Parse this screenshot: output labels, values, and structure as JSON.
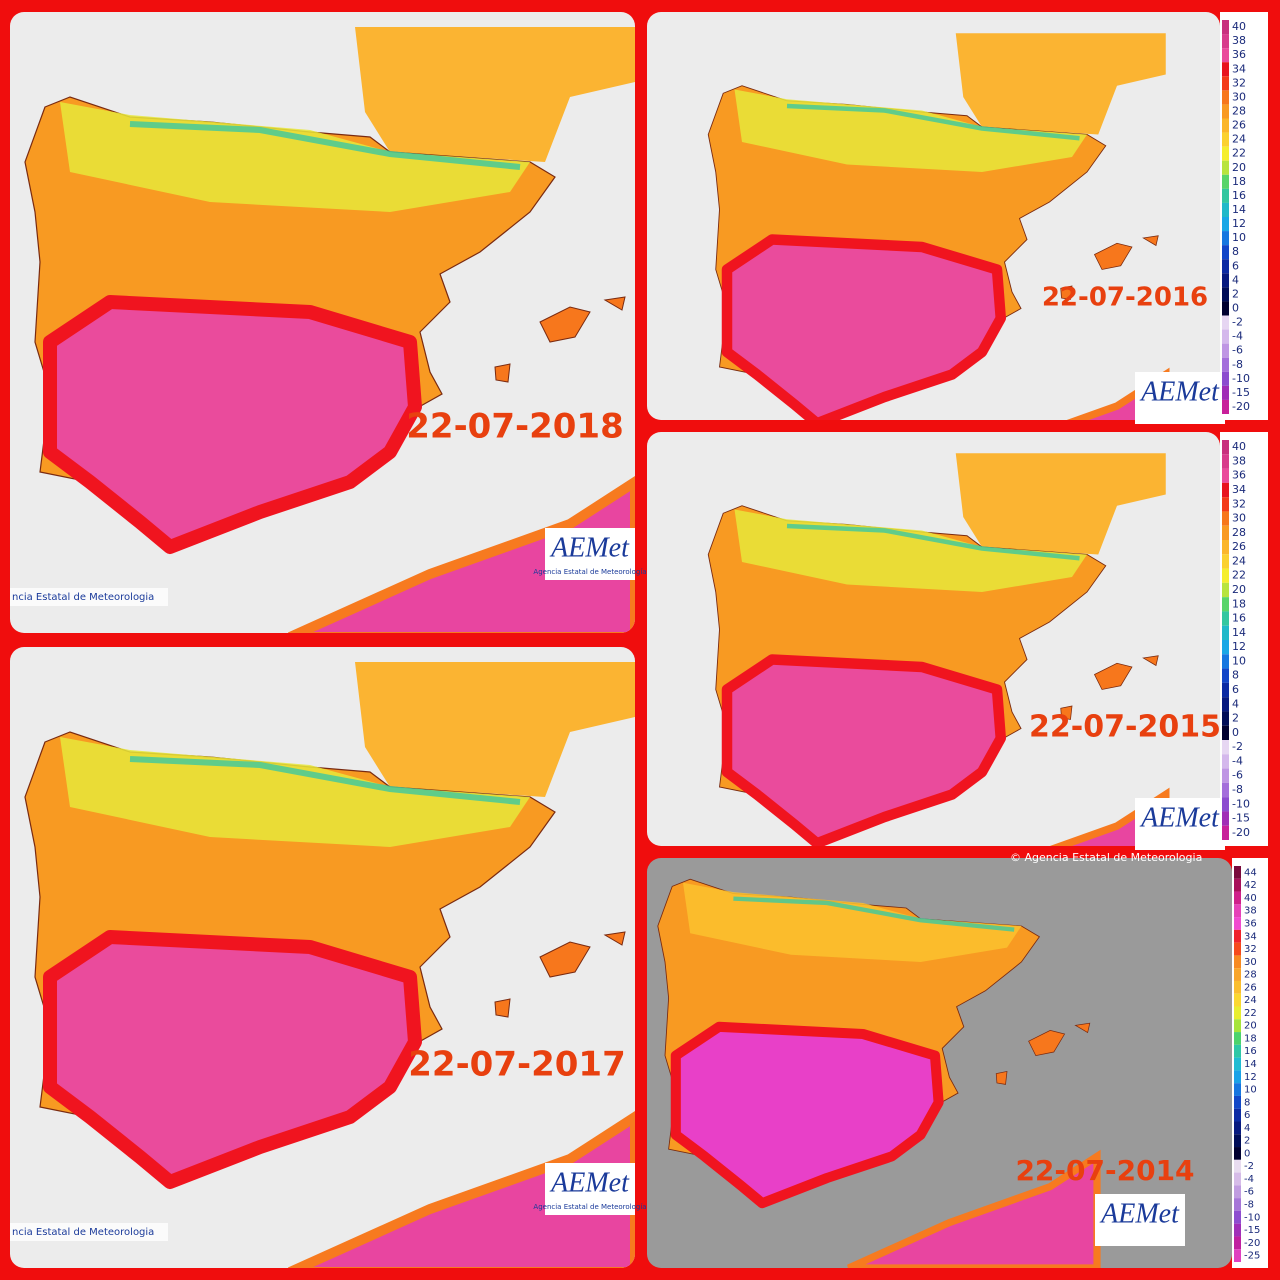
{
  "panels": [
    {
      "date": "22-07-2018",
      "credit": "ncia Estatal de Meteorologia",
      "logo": "AEMet",
      "logo_sub": "Agencia Estatal de Meteorología"
    },
    {
      "date": "22-07-2016",
      "logo": "AEMet"
    },
    {
      "date": "22-07-2015",
      "logo": "AEMet"
    },
    {
      "date": "22-07-2017",
      "credit": "ncia Estatal de Meteorologia",
      "logo": "AEMet",
      "logo_sub": "Agencia Estatal de Meteorología"
    },
    {
      "date": "22-07-2014",
      "header": "© Agencia Estatal de Meteorologia",
      "logo": "AEMet"
    }
  ],
  "legends": [
    {
      "labels": [
        40,
        38,
        36,
        34,
        32,
        30,
        28,
        26,
        24,
        22,
        20,
        18,
        16,
        14,
        12,
        10,
        8,
        6,
        4,
        2,
        0,
        -2,
        -4,
        -6,
        -8,
        -10,
        -15,
        -20
      ],
      "colors": [
        "#c8307e",
        "#d83c8c",
        "#ea4b9c",
        "#e8141f",
        "#f33a1a",
        "#f7771c",
        "#f99a23",
        "#fbb62a",
        "#fbd12f",
        "#f5ee2e",
        "#b8e43e",
        "#59d56a",
        "#33c7a0",
        "#21b9c9",
        "#1aa7e6",
        "#1777e0",
        "#1346c8",
        "#0c2ba4",
        "#071a80",
        "#000d58",
        "#000030",
        "#e6d6f2",
        "#d4b8ec",
        "#bf96e4",
        "#a46fdb",
        "#8c4ccf",
        "#a02db6",
        "#c8209a"
      ]
    },
    {
      "labels": [
        40,
        38,
        36,
        34,
        32,
        30,
        28,
        26,
        24,
        22,
        20,
        18,
        16,
        14,
        12,
        10,
        8,
        6,
        4,
        2,
        0,
        -2,
        -4,
        -6,
        -8,
        -10,
        -15,
        -20
      ],
      "colors": [
        "#c8307e",
        "#d83c8c",
        "#ea4b9c",
        "#e8141f",
        "#f33a1a",
        "#f7771c",
        "#f99a23",
        "#fbb62a",
        "#fbd12f",
        "#f5ee2e",
        "#b8e43e",
        "#59d56a",
        "#33c7a0",
        "#21b9c9",
        "#1aa7e6",
        "#1777e0",
        "#1346c8",
        "#0c2ba4",
        "#071a80",
        "#000d58",
        "#000030",
        "#e6d6f2",
        "#d4b8ec",
        "#bf96e4",
        "#a46fdb",
        "#8c4ccf",
        "#a02db6",
        "#c8209a"
      ]
    },
    {
      "labels": [
        44,
        42,
        40,
        38,
        36,
        34,
        32,
        30,
        28,
        26,
        24,
        22,
        20,
        18,
        16,
        14,
        12,
        10,
        8,
        6,
        4,
        2,
        0,
        -2,
        -4,
        -6,
        -8,
        -10,
        -15,
        -20,
        -25
      ],
      "colors": [
        "#7a0a3c",
        "#a80f5a",
        "#d0208a",
        "#e642b8",
        "#f04bd0",
        "#f0222a",
        "#f64a1c",
        "#f78a22",
        "#f9a52a",
        "#fbbe2e",
        "#fbd830",
        "#e8ee30",
        "#a6e43a",
        "#4cd46c",
        "#2ec8a6",
        "#20bcd2",
        "#1aa2e8",
        "#1676e0",
        "#1248c8",
        "#0c2ba4",
        "#071a80",
        "#000d58",
        "#000030",
        "#e8dcf0",
        "#d6bce8",
        "#c09ce0",
        "#a676d8",
        "#8e4ed0",
        "#a030b8",
        "#c020a0",
        "#e040c0"
      ]
    }
  ]
}
